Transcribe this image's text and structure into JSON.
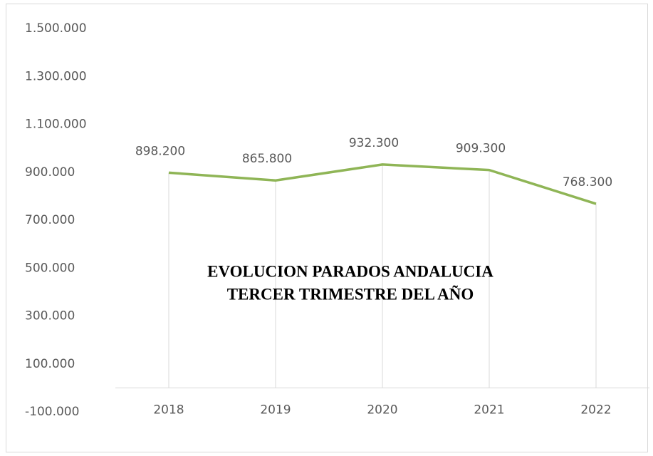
{
  "chart_data": {
    "type": "line",
    "title": [
      "EVOLUCION PARADOS ANDALUCIA",
      "TERCER TRIMESTRE DEL AÑO"
    ],
    "categories": [
      "2018",
      "2019",
      "2020",
      "2021",
      "2022"
    ],
    "series": [
      {
        "color": "#8fb556",
        "values": [
          898200,
          865800,
          932300,
          909300,
          768300
        ],
        "value_labels": [
          "898.200",
          "865.800",
          "932.300",
          "909.300",
          "768.300"
        ]
      }
    ],
    "ylim": [
      -100000,
      1500000
    ],
    "yticks": [
      {
        "value": -100000,
        "label": "-100.000"
      },
      {
        "value": 100000,
        "label": "100.000"
      },
      {
        "value": 300000,
        "label": "300.000"
      },
      {
        "value": 500000,
        "label": "500.000"
      },
      {
        "value": 700000,
        "label": "700.000"
      },
      {
        "value": 900000,
        "label": "900.000"
      },
      {
        "value": 1100000,
        "label": "1.100.000"
      },
      {
        "value": 1300000,
        "label": "1.300.000"
      },
      {
        "value": 1500000,
        "label": "1.500.000"
      }
    ],
    "drop_lines": true
  }
}
